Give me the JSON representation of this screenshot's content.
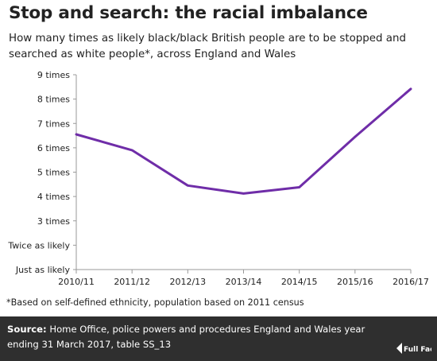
{
  "title": "Stop and search: the racial imbalance",
  "subtitle": "How many times as likely black/black British people are to be stopped and searched as white people*, across England and Wales",
  "footnote": "*Based on self-defined ethnicity, population based on 2011 census",
  "source": {
    "label": "Source:",
    "text": " Home Office, police powers and procedures England and Wales year ending 31 March 2017, table SS_13"
  },
  "logo_text": "Full Fact",
  "colors": {
    "line": "#6f2da8",
    "footer_bg": "#2f2f2f",
    "grid": "#cccccc"
  },
  "chart_data": {
    "type": "line",
    "title": "Stop and search: the racial imbalance",
    "xlabel": "",
    "ylabel": "",
    "ylim": [
      1,
      9
    ],
    "grid": false,
    "y_tick_values": [
      1,
      2,
      3,
      4,
      5,
      6,
      7,
      8,
      9
    ],
    "y_tick_labels": [
      "Just as likely",
      "Twice as likely",
      "3 times",
      "4 times",
      "5 times",
      "6 times",
      "7 times",
      "8 times",
      "9 times"
    ],
    "categories": [
      "2010/11",
      "2011/12",
      "2012/13",
      "2013/14",
      "2014/15",
      "2015/16",
      "2016/17"
    ],
    "series": [
      {
        "values": [
          6.55,
          5.9,
          4.45,
          4.12,
          4.38,
          6.45,
          8.42
        ]
      }
    ]
  }
}
